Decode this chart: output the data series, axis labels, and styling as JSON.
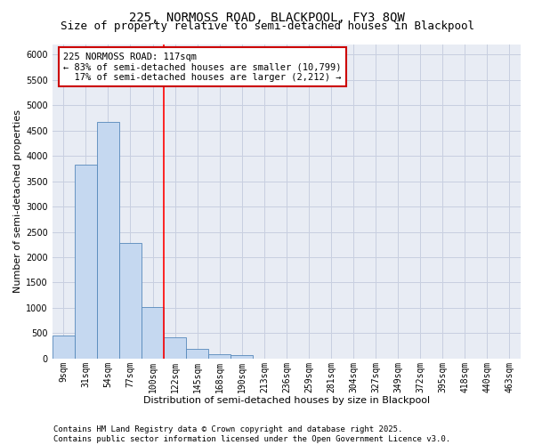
{
  "title_line1": "225, NORMOSS ROAD, BLACKPOOL, FY3 8QW",
  "title_line2": "Size of property relative to semi-detached houses in Blackpool",
  "xlabel": "Distribution of semi-detached houses by size in Blackpool",
  "ylabel": "Number of semi-detached properties",
  "bar_color": "#c5d8f0",
  "bar_edge_color": "#5588bb",
  "background_color": "#e8ecf4",
  "grid_color": "#c8cfe0",
  "categories": [
    "9sqm",
    "31sqm",
    "54sqm",
    "77sqm",
    "100sqm",
    "122sqm",
    "145sqm",
    "168sqm",
    "190sqm",
    "213sqm",
    "236sqm",
    "259sqm",
    "281sqm",
    "304sqm",
    "327sqm",
    "349sqm",
    "372sqm",
    "395sqm",
    "418sqm",
    "440sqm",
    "463sqm"
  ],
  "values": [
    450,
    3820,
    4670,
    2280,
    1020,
    410,
    195,
    80,
    65,
    0,
    0,
    0,
    0,
    0,
    0,
    0,
    0,
    0,
    0,
    0,
    0
  ],
  "ylim_max": 6200,
  "ytick_step": 500,
  "property_label": "225 NORMOSS ROAD: 117sqm",
  "pct_smaller": 83,
  "n_smaller": 10799,
  "pct_larger": 17,
  "n_larger": 2212,
  "vline_position": 4.5,
  "annotation_box_color": "#cc0000",
  "footer_line1": "Contains HM Land Registry data © Crown copyright and database right 2025.",
  "footer_line2": "Contains public sector information licensed under the Open Government Licence v3.0.",
  "title_fontsize": 10,
  "subtitle_fontsize": 9,
  "axis_label_fontsize": 8,
  "tick_fontsize": 7,
  "annotation_fontsize": 7.5,
  "footer_fontsize": 6.5
}
